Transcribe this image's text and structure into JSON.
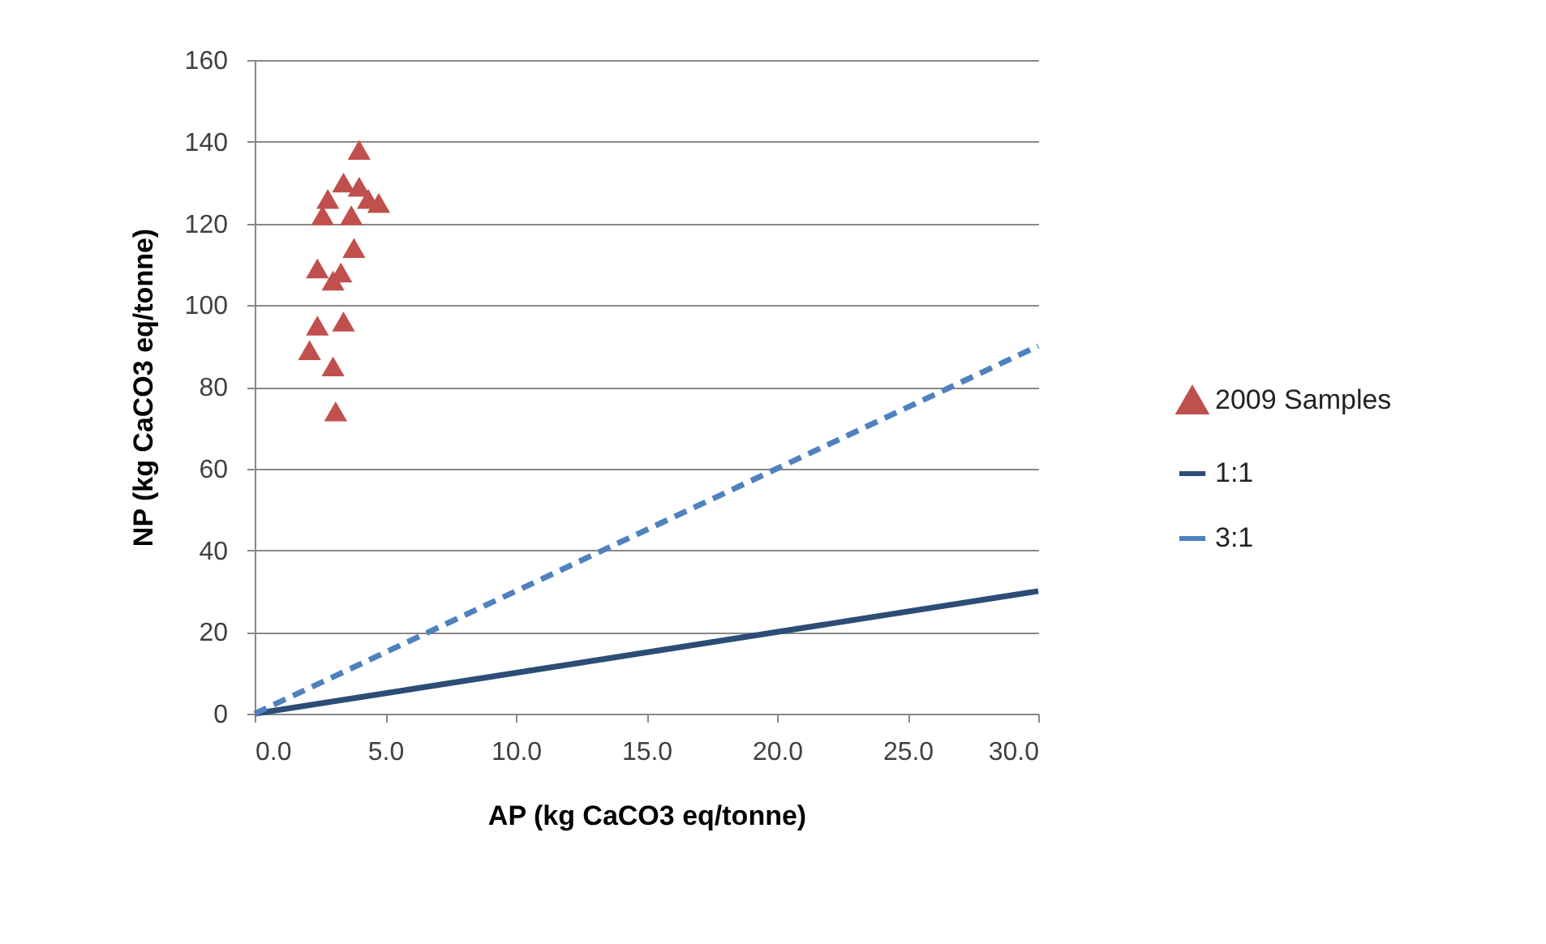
{
  "chart_data": {
    "type": "scatter",
    "xlabel": "AP (kg CaCO3 eq/tonne)",
    "ylabel": "NP (kg CaCO3 eq/tonne)",
    "xlim": [
      0,
      30
    ],
    "xticks": [
      {
        "value": 0,
        "label": "0.0"
      },
      {
        "value": 5,
        "label": "5.0"
      },
      {
        "value": 10,
        "label": "10.0"
      },
      {
        "value": 15,
        "label": "15.0"
      },
      {
        "value": 20,
        "label": "20.0"
      },
      {
        "value": 25,
        "label": "25.0"
      },
      {
        "value": 30,
        "label": "30.0"
      }
    ],
    "ylim": [
      0,
      160
    ],
    "yticks": [
      0,
      20,
      40,
      60,
      80,
      100,
      120,
      140,
      160
    ],
    "grid": "y",
    "legend": "right",
    "series": [
      {
        "name": "2009 Samples",
        "type": "scatter",
        "marker": "triangle",
        "color": "#c0504d",
        "x": [
          4.0,
          2.8,
          3.4,
          4.0,
          4.75,
          4.35,
          2.6,
          3.7,
          3.8,
          2.4,
          3.3,
          3.0,
          3.4,
          2.4,
          2.1,
          3.0,
          3.1
        ],
        "values": [
          138,
          126,
          130,
          129,
          125,
          126,
          122,
          122,
          114,
          109,
          108,
          106,
          96,
          95,
          89,
          85,
          74
        ]
      },
      {
        "name": "1:1",
        "type": "line",
        "marker": "none",
        "line_style": "solid",
        "color": "#2c4d75",
        "x": [
          0,
          30
        ],
        "values": [
          0,
          30
        ]
      },
      {
        "name": "3:1",
        "type": "line",
        "marker": "none",
        "line_style": "dashed",
        "color": "#4f81bd",
        "x": [
          0,
          30
        ],
        "values": [
          0,
          90
        ]
      }
    ]
  }
}
